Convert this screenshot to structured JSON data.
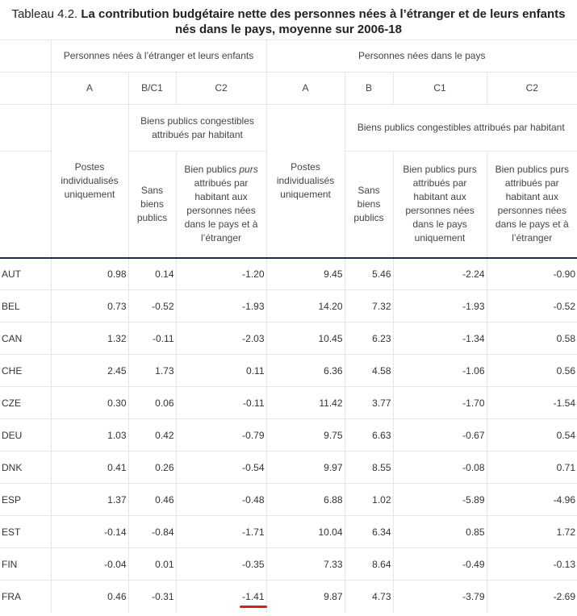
{
  "title": {
    "prefix": "Tableau 4.2.",
    "main": "La contribution budgétaire nette des personnes nées à l’étranger et de leurs enfants nés dans le pays, moyenne sur 2006-18"
  },
  "groups": {
    "foreign": "Personnes nées à l’étranger et leurs enfants",
    "native": "Personnes nées dans le pays"
  },
  "codes": [
    "A",
    "B/C1",
    "C2",
    "A",
    "B",
    "C1",
    "C2"
  ],
  "subgroups": {
    "foreign": "Biens publics congestibles attribués par habitant",
    "native": "Biens publics congestibles attribués par habitant"
  },
  "colheads": {
    "f_a": "Postes individualisés uniquement",
    "f_b": "Sans biens publics",
    "f_c2_pre": "Bien publics ",
    "f_c2_em": "purs",
    "f_c2_post": " attribués par habitant aux personnes nées dans le pays et à l’étranger",
    "n_a": "Postes individualisés uniquement",
    "n_b": "Sans biens publics",
    "n_c1": "Bien publics purs attribués par habitant aux personnes nées dans le pays uniquement",
    "n_c2": "Bien publics purs attribués par habitant aux personnes nées dans le pays et à l’étranger"
  },
  "rows": [
    {
      "country": "AUT",
      "v": [
        "0.98",
        "0.14",
        "-1.20",
        "9.45",
        "5.46",
        "-2.24",
        "-0.90"
      ]
    },
    {
      "country": "BEL",
      "v": [
        "0.73",
        "-0.52",
        "-1.93",
        "14.20",
        "7.32",
        "-1.93",
        "-0.52"
      ]
    },
    {
      "country": "CAN",
      "v": [
        "1.32",
        "-0.11",
        "-2.03",
        "10.45",
        "6.23",
        "-1.34",
        "0.58"
      ]
    },
    {
      "country": "CHE",
      "v": [
        "2.45",
        "1.73",
        "0.11",
        "6.36",
        "4.58",
        "-1.06",
        "0.56"
      ]
    },
    {
      "country": "CZE",
      "v": [
        "0.30",
        "0.06",
        "-0.11",
        "11.42",
        "3.77",
        "-1.70",
        "-1.54"
      ]
    },
    {
      "country": "DEU",
      "v": [
        "1.03",
        "0.42",
        "-0.79",
        "9.75",
        "6.63",
        "-0.67",
        "0.54"
      ]
    },
    {
      "country": "DNK",
      "v": [
        "0.41",
        "0.26",
        "-0.54",
        "9.97",
        "8.55",
        "-0.08",
        "0.71"
      ]
    },
    {
      "country": "ESP",
      "v": [
        "1.37",
        "0.46",
        "-0.48",
        "6.88",
        "1.02",
        "-5.89",
        "-4.96"
      ]
    },
    {
      "country": "EST",
      "v": [
        "-0.14",
        "-0.84",
        "-1.71",
        "10.04",
        "6.34",
        "0.85",
        "1.72"
      ]
    },
    {
      "country": "FIN",
      "v": [
        "-0.04",
        "0.01",
        "-0.35",
        "7.33",
        "8.64",
        "-0.49",
        "-0.13"
      ]
    },
    {
      "country": "FRA",
      "v": [
        "0.46",
        "-0.31",
        "-1.41",
        "9.87",
        "4.73",
        "-3.79",
        "-2.69"
      ]
    }
  ],
  "highlight": {
    "row": 10,
    "col": 2,
    "color": "#d6201e"
  }
}
